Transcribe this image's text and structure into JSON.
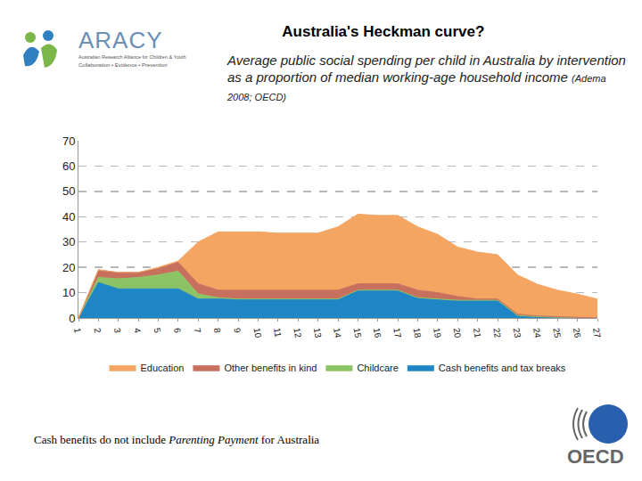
{
  "chart_data": {
    "type": "area",
    "title": "Australia's Heckman curve?",
    "subtitle": "Average public social spending per child in Australia by intervention as a proportion of median working-age household income",
    "source": "(Adema 2008; OECD)",
    "footnote": [
      "Cash benefits do not include ",
      "Parenting Payment",
      " for Australia"
    ],
    "logos": [
      "ARACY",
      "Australian Research Alliance for Children & Youth",
      "Collaboration • Evidence • Prevention",
      "OECD"
    ],
    "x": [
      1,
      2,
      3,
      4,
      5,
      6,
      7,
      8,
      9,
      10,
      11,
      12,
      13,
      14,
      15,
      16,
      17,
      18,
      19,
      20,
      21,
      22,
      23,
      24,
      25,
      26,
      27
    ],
    "xlim": [
      1,
      27
    ],
    "xticks": [
      1,
      2,
      3,
      4,
      5,
      6,
      7,
      8,
      9,
      10,
      11,
      12,
      13,
      14,
      15,
      16,
      17,
      18,
      19,
      20,
      21,
      22,
      23,
      24,
      25,
      26,
      27
    ],
    "ylim": [
      0,
      70
    ],
    "yticks": [
      0,
      10,
      20,
      30,
      40,
      50,
      60,
      70
    ],
    "grid": true,
    "stacked": true,
    "legend": "bottom",
    "series": [
      {
        "name": "Cash benefits and tax breaks",
        "color": "#1f86c6",
        "values": [
          0,
          14,
          11.5,
          11.5,
          11.5,
          11.5,
          7.5,
          7.5,
          7.5,
          7.5,
          7.5,
          7.5,
          7.5,
          7.5,
          11,
          11,
          11,
          8,
          7.5,
          7,
          7,
          7,
          1,
          0.5,
          0.3,
          0.2,
          0
        ]
      },
      {
        "name": "Childcare",
        "color": "#8cc465",
        "values": [
          0,
          2,
          4,
          4.5,
          5.5,
          7,
          2,
          0.5,
          0,
          0,
          0,
          0,
          0,
          0,
          0,
          0,
          0,
          0,
          0,
          0,
          0,
          0,
          0,
          0,
          0,
          0,
          0
        ]
      },
      {
        "name": "Other benefits in kind",
        "color": "#c8705e",
        "values": [
          0,
          3,
          2.5,
          2,
          2.5,
          3.5,
          4,
          3,
          3.5,
          3.5,
          3.5,
          3.5,
          3.5,
          3.5,
          2.5,
          2.5,
          2.5,
          3,
          2.5,
          1.5,
          0.5,
          0.5,
          0.5,
          0.3,
          0.2,
          0.2,
          0
        ]
      },
      {
        "name": "Education",
        "color": "#f4a562",
        "values": [
          0,
          0,
          0,
          0,
          0.5,
          0.5,
          16.5,
          23,
          23,
          23,
          22.5,
          22.5,
          22.5,
          25,
          27.5,
          27,
          27,
          25,
          23,
          19.5,
          18.5,
          17.5,
          15.5,
          12.5,
          10.5,
          9,
          7.5
        ]
      }
    ]
  }
}
